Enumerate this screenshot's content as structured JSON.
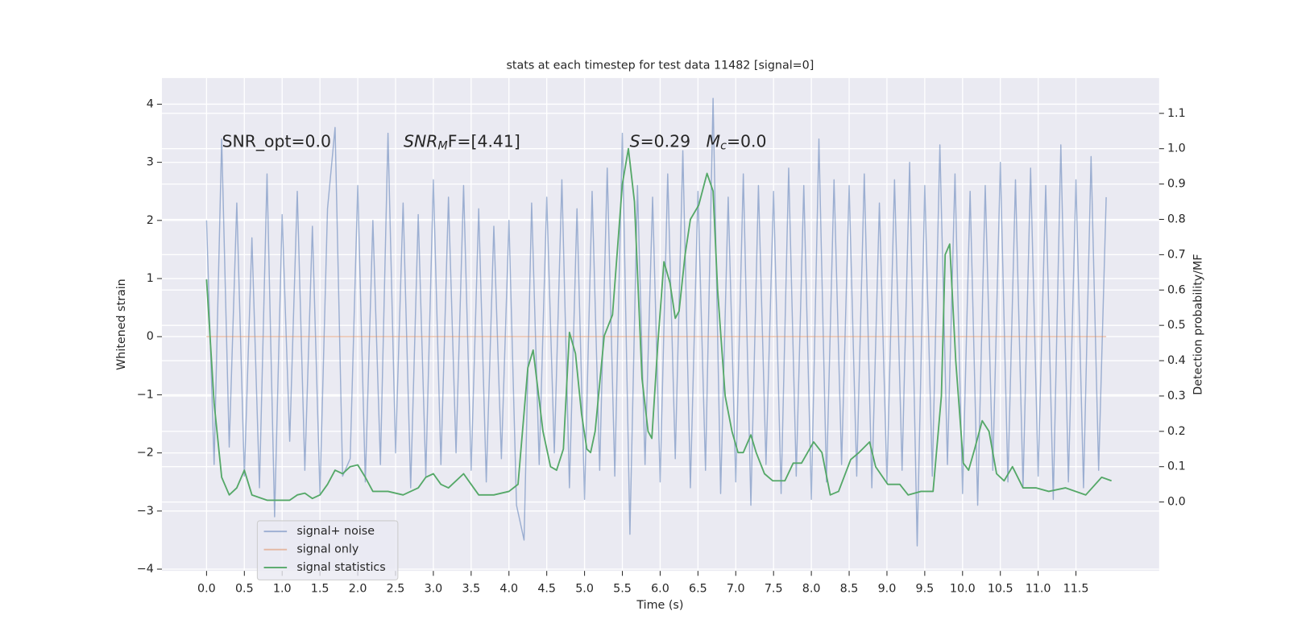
{
  "chart_data": {
    "type": "line",
    "title": "stats at each timestep for test data 11482 [signal=0]",
    "x_label": "Time (s)",
    "y_label": "Whitened strain",
    "y2_label": "Detection probability/MF",
    "xlim": [
      -0.59,
      12.6
    ],
    "ylim": [
      -4.03,
      4.45
    ],
    "y2lim": [
      -0.195,
      1.2
    ],
    "grid": true,
    "legend": "lower left",
    "xticks": [
      {
        "value": 0,
        "label": "0.0"
      },
      {
        "value": 0.5,
        "label": "0.5"
      },
      {
        "value": 1,
        "label": "1.0"
      },
      {
        "value": 1.5,
        "label": "1.5"
      },
      {
        "value": 2,
        "label": "2.0"
      },
      {
        "value": 2.5,
        "label": "2.5"
      },
      {
        "value": 3,
        "label": "3.0"
      },
      {
        "value": 3.5,
        "label": "3.5"
      },
      {
        "value": 4,
        "label": "4.0"
      },
      {
        "value": 4.5,
        "label": "4.5"
      },
      {
        "value": 5,
        "label": "5.0"
      },
      {
        "value": 5.5,
        "label": "5.5"
      },
      {
        "value": 6,
        "label": "6.0"
      },
      {
        "value": 6.5,
        "label": "6.5"
      },
      {
        "value": 7,
        "label": "7.0"
      },
      {
        "value": 7.5,
        "label": "7.5"
      },
      {
        "value": 8,
        "label": "8.0"
      },
      {
        "value": 8.5,
        "label": "8.5"
      },
      {
        "value": 9,
        "label": "9.0"
      },
      {
        "value": 9.5,
        "label": "9.5"
      },
      {
        "value": 10,
        "label": "10.0"
      },
      {
        "value": 10.5,
        "label": "10.5"
      },
      {
        "value": 11,
        "label": "11.0"
      },
      {
        "value": 11.5,
        "label": "11.5"
      }
    ],
    "yticks": [
      {
        "value": -4,
        "label": "−4"
      },
      {
        "value": -3,
        "label": "−3"
      },
      {
        "value": -2,
        "label": "−2"
      },
      {
        "value": -1,
        "label": "−1"
      },
      0,
      1,
      2,
      3,
      4
    ],
    "y2ticks": [
      {
        "value": 0,
        "label": "0.0"
      },
      {
        "value": 0.1,
        "label": "0.1"
      },
      {
        "value": 0.2,
        "label": "0.2"
      },
      {
        "value": 0.3,
        "label": "0.3"
      },
      {
        "value": 0.4,
        "label": "0.4"
      },
      {
        "value": 0.5,
        "label": "0.5"
      },
      {
        "value": 0.6,
        "label": "0.6"
      },
      {
        "value": 0.7,
        "label": "0.7"
      },
      {
        "value": 0.8,
        "label": "0.8"
      },
      {
        "value": 0.9,
        "label": "0.9"
      },
      {
        "value": 1,
        "label": "1.0"
      },
      {
        "value": 1.1,
        "label": "1.1"
      }
    ],
    "annotations": [
      {
        "text": "SNR_opt=0.0"
      },
      {
        "text": "SNR",
        "sub": "M",
        "after": "F=[4.41]"
      },
      {
        "text": "S",
        "after": "=0.29"
      },
      {
        "text": "M",
        "sub": "c",
        "after": "=0.0"
      }
    ],
    "series": [
      {
        "name": "signal+ noise",
        "color": "#4c72b0",
        "alpha": 0.5,
        "x": [
          0,
          0.1,
          0.2,
          0.3,
          0.4,
          0.5,
          0.6,
          0.7,
          0.8,
          0.9,
          1,
          1.1,
          1.2,
          1.3,
          1.4,
          1.5,
          1.6,
          1.7,
          1.8,
          1.9,
          2,
          2.1,
          2.2,
          2.3,
          2.4,
          2.5,
          2.6,
          2.7,
          2.8,
          2.9,
          3,
          3.1,
          3.2,
          3.3,
          3.4,
          3.5,
          3.6,
          3.7,
          3.8,
          3.9,
          4,
          4.1,
          4.2,
          4.3,
          4.4,
          4.5,
          4.6,
          4.7,
          4.8,
          4.9,
          5,
          5.1,
          5.2,
          5.3,
          5.4,
          5.5,
          5.6,
          5.7,
          5.8,
          5.9,
          6,
          6.1,
          6.2,
          6.3,
          6.4,
          6.5,
          6.6,
          6.7,
          6.8,
          6.9,
          7,
          7.1,
          7.2,
          7.3,
          7.4,
          7.5,
          7.6,
          7.7,
          7.8,
          7.9,
          8,
          8.1,
          8.2,
          8.3,
          8.4,
          8.5,
          8.6,
          8.7,
          8.8,
          8.9,
          9,
          9.1,
          9.2,
          9.3,
          9.4,
          9.5,
          9.6,
          9.7,
          9.8,
          9.9,
          10,
          10.1,
          10.2,
          10.3,
          10.4,
          10.5,
          10.6,
          10.7,
          10.8,
          10.9,
          11,
          11.1,
          11.2,
          11.3,
          11.4,
          11.5,
          11.6,
          11.7,
          11.8,
          11.9
        ],
        "values": [
          2.0,
          -2.2,
          3.4,
          -1.9,
          2.3,
          -2.4,
          1.7,
          -2.6,
          2.8,
          -3.1,
          2.1,
          -1.8,
          2.5,
          -2.3,
          1.9,
          -2.7,
          2.2,
          3.6,
          -2.4,
          -2.1,
          2.6,
          -2.5,
          2.0,
          -2.2,
          3.5,
          -2.0,
          2.3,
          -2.6,
          2.1,
          -2.4,
          2.7,
          -2.2,
          2.4,
          -2.0,
          2.6,
          -2.3,
          2.2,
          -2.5,
          1.9,
          -2.1,
          2.0,
          -2.9,
          -3.5,
          2.3,
          -2.2,
          2.4,
          -2.0,
          2.7,
          -2.6,
          2.2,
          -2.8,
          2.5,
          -2.3,
          2.9,
          -2.4,
          3.5,
          -3.4,
          2.6,
          -2.2,
          2.4,
          -2.5,
          2.8,
          -2.1,
          3.2,
          -2.6,
          2.5,
          -2.3,
          4.1,
          -2.7,
          2.4,
          -2.5,
          2.8,
          -2.9,
          2.6,
          -2.2,
          2.5,
          -2.7,
          2.9,
          -2.4,
          2.6,
          -2.8,
          3.4,
          -2.5,
          2.7,
          -2.2,
          2.6,
          -2.4,
          2.8,
          -2.6,
          2.3,
          -2.5,
          2.7,
          -2.3,
          3.0,
          -3.6,
          2.6,
          -2.4,
          3.3,
          -2.2,
          2.8,
          -2.7,
          2.5,
          -2.9,
          2.6,
          -2.3,
          3.0,
          -2.5,
          2.7,
          -2.6,
          2.9,
          -2.4,
          2.6,
          -2.8,
          3.3,
          -2.5,
          2.7,
          -2.6,
          3.1,
          -2.3,
          2.4
        ]
      },
      {
        "name": "signal only",
        "color": "#dd8452",
        "alpha": 0.5,
        "x": [
          0,
          11.9
        ],
        "values": [
          0,
          0
        ]
      },
      {
        "name": "signal statistics",
        "color": "#55a868",
        "alpha": 1,
        "axis": "y2",
        "x": [
          0,
          0.1,
          0.2,
          0.3,
          0.4,
          0.5,
          0.6,
          0.8,
          1.0,
          1.1,
          1.2,
          1.3,
          1.4,
          1.5,
          1.6,
          1.7,
          1.8,
          1.9,
          2.0,
          2.1,
          2.2,
          2.4,
          2.6,
          2.8,
          2.9,
          3.0,
          3.1,
          3.2,
          3.3,
          3.4,
          3.5,
          3.6,
          3.8,
          4.0,
          4.12,
          4.25,
          4.32,
          4.45,
          4.55,
          4.63,
          4.72,
          4.8,
          4.88,
          4.96,
          5.03,
          5.08,
          5.14,
          5.26,
          5.37,
          5.5,
          5.58,
          5.66,
          5.76,
          5.84,
          5.89,
          5.97,
          6.05,
          6.13,
          6.2,
          6.25,
          6.33,
          6.4,
          6.51,
          6.62,
          6.7,
          6.76,
          6.86,
          6.95,
          7.03,
          7.1,
          7.2,
          7.27,
          7.38,
          7.49,
          7.65,
          7.76,
          7.87,
          8.03,
          8.14,
          8.25,
          8.36,
          8.52,
          8.63,
          8.77,
          8.85,
          9.01,
          9.17,
          9.28,
          9.45,
          9.61,
          9.72,
          9.77,
          9.83,
          9.91,
          10.01,
          10.08,
          10.16,
          10.26,
          10.35,
          10.45,
          10.55,
          10.66,
          10.8,
          10.97,
          11.14,
          11.36,
          11.63,
          11.84,
          11.97
        ],
        "values": [
          0.63,
          0.28,
          0.07,
          0.02,
          0.04,
          0.09,
          0.02,
          0.005,
          0.005,
          0.005,
          0.02,
          0.025,
          0.01,
          0.02,
          0.05,
          0.09,
          0.08,
          0.1,
          0.105,
          0.07,
          0.03,
          0.03,
          0.02,
          0.04,
          0.07,
          0.08,
          0.05,
          0.04,
          0.06,
          0.08,
          0.05,
          0.02,
          0.02,
          0.03,
          0.05,
          0.38,
          0.43,
          0.2,
          0.1,
          0.09,
          0.15,
          0.48,
          0.42,
          0.25,
          0.15,
          0.14,
          0.2,
          0.47,
          0.53,
          0.9,
          1.0,
          0.85,
          0.35,
          0.2,
          0.18,
          0.45,
          0.68,
          0.62,
          0.52,
          0.54,
          0.7,
          0.8,
          0.84,
          0.93,
          0.88,
          0.6,
          0.3,
          0.2,
          0.14,
          0.14,
          0.19,
          0.14,
          0.08,
          0.06,
          0.06,
          0.11,
          0.11,
          0.17,
          0.14,
          0.02,
          0.03,
          0.12,
          0.14,
          0.17,
          0.1,
          0.05,
          0.05,
          0.02,
          0.03,
          0.03,
          0.3,
          0.7,
          0.73,
          0.4,
          0.11,
          0.09,
          0.15,
          0.23,
          0.2,
          0.08,
          0.06,
          0.1,
          0.04,
          0.04,
          0.03,
          0.04,
          0.02,
          0.07,
          0.06
        ]
      }
    ]
  }
}
